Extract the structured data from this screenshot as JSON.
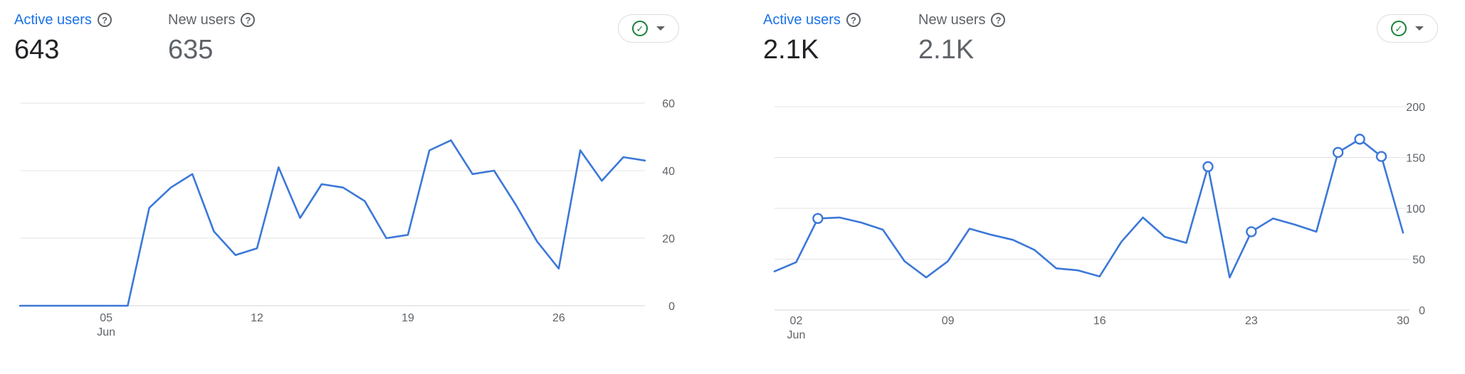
{
  "panels": [
    {
      "metrics": {
        "active": {
          "label": "Active users",
          "value": "643"
        },
        "new": {
          "label": "New users",
          "value": "635"
        }
      },
      "compare_icon": "check-circle-icon",
      "dropdown_icon": "caret-down-icon"
    },
    {
      "metrics": {
        "active": {
          "label": "Active users",
          "value": "2.1K"
        },
        "new": {
          "label": "New users",
          "value": "2.1K"
        }
      },
      "compare_icon": "check-circle-icon",
      "dropdown_icon": "caret-down-icon"
    }
  ],
  "colors": {
    "line": "#3c78d8",
    "grid": "#e3e3e3",
    "active_label": "#1a73e8",
    "check": "#188038"
  },
  "chart_data": [
    {
      "type": "line",
      "title": "",
      "series": [
        {
          "values": [
            0,
            0,
            0,
            0,
            0,
            0,
            29,
            35,
            39,
            22,
            15,
            17,
            41,
            26,
            36,
            35,
            31,
            20,
            21,
            46,
            49,
            39,
            40,
            30,
            19,
            11,
            46,
            37,
            44,
            43
          ]
        }
      ],
      "x_start_day": 1,
      "x_ticks": [
        {
          "day": 5,
          "label": "05",
          "sublabel": "Jun"
        },
        {
          "day": 12,
          "label": "12",
          "sublabel": ""
        },
        {
          "day": 19,
          "label": "19",
          "sublabel": ""
        },
        {
          "day": 26,
          "label": "26",
          "sublabel": ""
        }
      ],
      "y_ticks": [
        0,
        20,
        40,
        60
      ],
      "ylim": [
        0,
        60
      ],
      "grid": true
    },
    {
      "type": "line",
      "title": "",
      "series": [
        {
          "values": [
            38,
            47,
            90,
            91,
            86,
            79,
            48,
            32,
            48,
            80,
            74,
            69,
            59,
            41,
            39,
            33,
            67,
            91,
            72,
            66,
            141,
            32,
            77,
            90,
            84,
            77,
            155,
            168,
            151,
            76
          ],
          "highlighted_days": [
            3,
            21,
            23,
            27,
            28,
            29
          ]
        }
      ],
      "x_start_day": 1,
      "x_ticks": [
        {
          "day": 2,
          "label": "02",
          "sublabel": "Jun"
        },
        {
          "day": 9,
          "label": "09",
          "sublabel": ""
        },
        {
          "day": 16,
          "label": "16",
          "sublabel": ""
        },
        {
          "day": 23,
          "label": "23",
          "sublabel": ""
        },
        {
          "day": 30,
          "label": "30",
          "sublabel": ""
        }
      ],
      "y_ticks": [
        0,
        50,
        100,
        150,
        200
      ],
      "ylim": [
        0,
        200
      ],
      "grid": true
    }
  ]
}
